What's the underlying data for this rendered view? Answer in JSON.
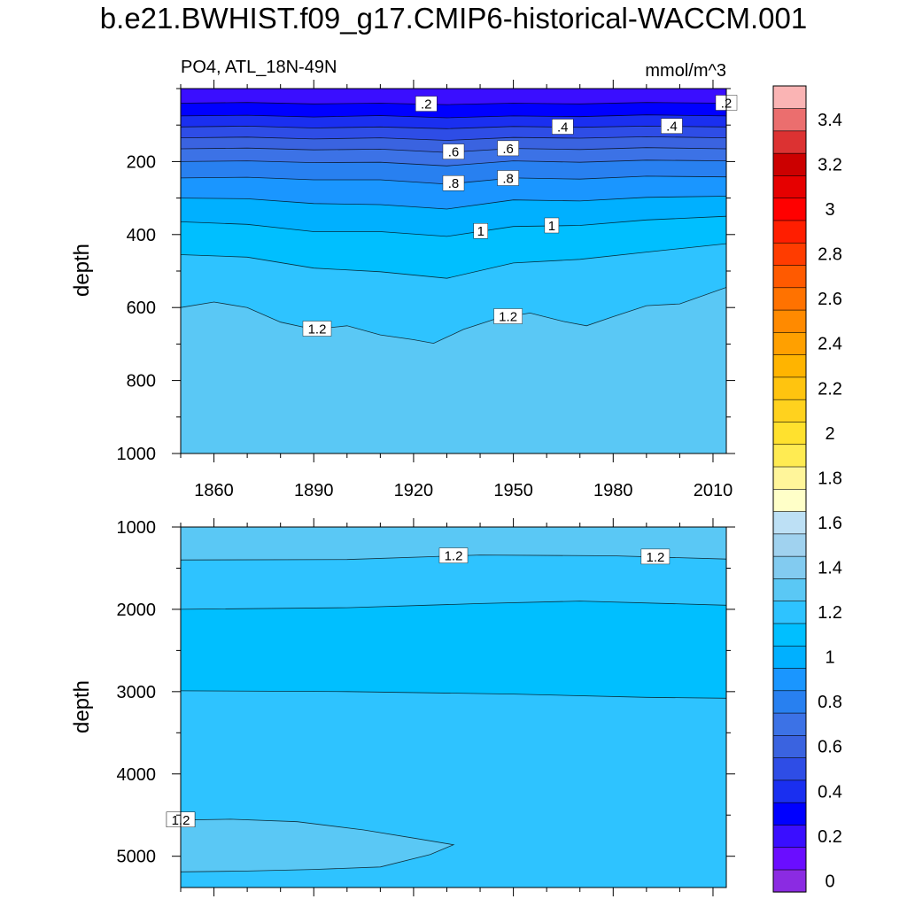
{
  "figure": {
    "title": "b.e21.BWHIST.f09_g17.CMIP6-historical-WACCM.001",
    "left_string": "PO4, ATL_18N-49N",
    "right_string": "mmol/m^3"
  },
  "chart_data": [
    {
      "type": "contour",
      "panel": "upper",
      "variable": "PO4",
      "region": "ATL_18N-49N",
      "units": "mmol/m^3",
      "ylabel": "depth",
      "xlabel": "",
      "xlim": [
        1850,
        2014
      ],
      "ylim": [
        1000,
        0
      ],
      "x_ticks": [
        1860,
        1890,
        1920,
        1950,
        1980,
        2010
      ],
      "y_ticks": [
        200,
        400,
        600,
        800,
        1000
      ],
      "contour_lines": [
        {
          "level": 0.2,
          "label": ".2",
          "x": [
            1850,
            1870,
            1890,
            1910,
            1930,
            1950,
            1970,
            1990,
            2014
          ],
          "depth": [
            40,
            38,
            42,
            40,
            44,
            40,
            42,
            38,
            40
          ]
        },
        {
          "level": 0.3,
          "label": "",
          "x": [
            1850,
            1870,
            1890,
            1910,
            1930,
            1950,
            1970,
            1990,
            2014
          ],
          "depth": [
            75,
            73,
            78,
            74,
            80,
            75,
            77,
            72,
            75
          ]
        },
        {
          "level": 0.4,
          "label": ".4",
          "x": [
            1850,
            1870,
            1890,
            1910,
            1930,
            1950,
            1970,
            1990,
            2014
          ],
          "depth": [
            105,
            103,
            108,
            105,
            110,
            104,
            106,
            103,
            105
          ]
        },
        {
          "level": 0.5,
          "label": "",
          "x": [
            1850,
            1870,
            1890,
            1910,
            1930,
            1950,
            1970,
            1990,
            2014
          ],
          "depth": [
            135,
            133,
            138,
            135,
            142,
            134,
            136,
            132,
            135
          ]
        },
        {
          "level": 0.6,
          "label": ".6",
          "x": [
            1850,
            1870,
            1890,
            1910,
            1930,
            1950,
            1970,
            1990,
            2014
          ],
          "depth": [
            165,
            163,
            168,
            166,
            175,
            164,
            167,
            162,
            165
          ]
        },
        {
          "level": 0.7,
          "label": "",
          "x": [
            1850,
            1870,
            1890,
            1910,
            1930,
            1950,
            1970,
            1990,
            2014
          ],
          "depth": [
            200,
            198,
            203,
            202,
            212,
            198,
            202,
            196,
            198
          ]
        },
        {
          "level": 0.8,
          "label": ".8",
          "x": [
            1850,
            1870,
            1890,
            1910,
            1930,
            1950,
            1970,
            1990,
            2014
          ],
          "depth": [
            245,
            243,
            250,
            250,
            262,
            245,
            248,
            240,
            242
          ]
        },
        {
          "level": 0.9,
          "label": "",
          "x": [
            1850,
            1870,
            1890,
            1910,
            1930,
            1950,
            1970,
            1990,
            2014
          ],
          "depth": [
            300,
            302,
            315,
            318,
            330,
            305,
            308,
            298,
            295
          ]
        },
        {
          "level": 1.0,
          "label": "1",
          "x": [
            1850,
            1870,
            1890,
            1910,
            1930,
            1950,
            1970,
            1990,
            2014
          ],
          "depth": [
            365,
            372,
            392,
            392,
            405,
            378,
            375,
            360,
            350
          ]
        },
        {
          "level": 1.1,
          "label": "",
          "x": [
            1850,
            1870,
            1890,
            1910,
            1930,
            1950,
            1970,
            1990,
            2014
          ],
          "depth": [
            455,
            462,
            492,
            502,
            520,
            478,
            468,
            448,
            425
          ]
        },
        {
          "level": 1.2,
          "label": "1.2",
          "x": [
            1850,
            1860,
            1870,
            1880,
            1890,
            1900,
            1910,
            1920,
            1926,
            1935,
            1945,
            1955,
            1965,
            1972,
            1980,
            1990,
            2000,
            2014
          ],
          "depth": [
            600,
            585,
            600,
            640,
            660,
            650,
            675,
            688,
            698,
            660,
            630,
            615,
            638,
            650,
            625,
            595,
            590,
            545
          ]
        }
      ]
    },
    {
      "type": "contour",
      "panel": "lower",
      "variable": "PO4",
      "region": "ATL_18N-49N",
      "units": "mmol/m^3",
      "ylabel": "depth",
      "xlabel": "",
      "xlim": [
        1850,
        2014
      ],
      "ylim": [
        5380,
        1000
      ],
      "x_ticks": [
        1860,
        1890,
        1920,
        1950,
        1980,
        2010
      ],
      "y_ticks": [
        1000,
        2000,
        3000,
        4000,
        5000
      ],
      "contour_lines": [
        {
          "level": 1.2,
          "label": "1.2",
          "x": [
            1850,
            1900,
            1940,
            1980,
            2014
          ],
          "depth": [
            1400,
            1395,
            1340,
            1350,
            1390
          ]
        },
        {
          "level": 1.1,
          "label": "",
          "x": [
            1850,
            1900,
            1940,
            1970,
            2014
          ],
          "depth": [
            2000,
            1980,
            1930,
            1900,
            1950
          ]
        },
        {
          "level": 1.1,
          "label": "",
          "x": [
            1850,
            1900,
            1950,
            1990,
            2014
          ],
          "depth": [
            2990,
            3000,
            3030,
            3070,
            3080
          ]
        },
        {
          "level": 1.2,
          "label": "1.2",
          "x": [
            1850,
            1865,
            1885,
            1905,
            1920,
            1932,
            1925,
            1910,
            1890,
            1870,
            1850
          ],
          "depth": [
            4560,
            4550,
            4580,
            4680,
            4780,
            4860,
            4980,
            5130,
            5160,
            5180,
            5190
          ]
        }
      ]
    },
    {
      "type": "colorbar",
      "levels": [
        0,
        0.1,
        0.2,
        0.3,
        0.4,
        0.5,
        0.6,
        0.7,
        0.8,
        0.9,
        1.0,
        1.1,
        1.2,
        1.3,
        1.4,
        1.5,
        1.6,
        1.7,
        1.8,
        1.9,
        2.0,
        2.1,
        2.2,
        2.3,
        2.4,
        2.5,
        2.6,
        2.7,
        2.8,
        2.9,
        3.0,
        3.1,
        3.2,
        3.3,
        3.4,
        3.5
      ],
      "tick_labels": [
        "0",
        "0.2",
        "0.4",
        "0.6",
        "0.8",
        "1",
        "1.2",
        "1.4",
        "1.6",
        "1.8",
        "2",
        "2.2",
        "2.4",
        "2.6",
        "2.8",
        "3",
        "3.2",
        "3.4"
      ],
      "colors": [
        "#8b2be2",
        "#6a0dff",
        "#3a0eff",
        "#0000ff",
        "#1a2ff0",
        "#2e4de6",
        "#3a63e0",
        "#3c72e6",
        "#2880f0",
        "#1a96ff",
        "#00b0ff",
        "#00bfff",
        "#2ec3ff",
        "#5ac8f5",
        "#82cbf0",
        "#a0d2ef",
        "#bde0f5",
        "#ffffc8",
        "#fff59a",
        "#ffeb52",
        "#ffe12e",
        "#ffd21e",
        "#ffc40f",
        "#ffb400",
        "#ffa000",
        "#ff8a00",
        "#ff7200",
        "#ff5a00",
        "#ff3c00",
        "#ff1e00",
        "#ff0000",
        "#e60000",
        "#cc0000",
        "#dc3232",
        "#eb6e6e",
        "#fab4b4"
      ]
    }
  ]
}
